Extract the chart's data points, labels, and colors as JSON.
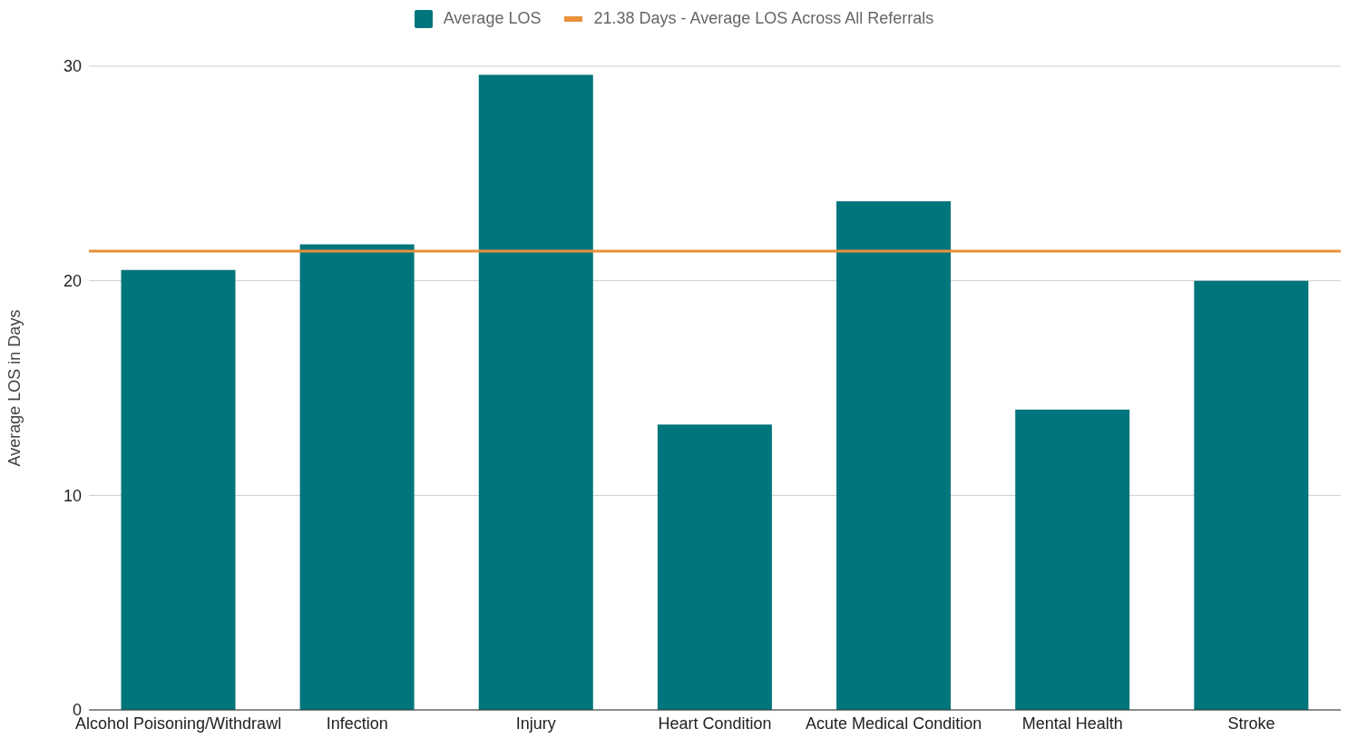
{
  "chart_data": {
    "type": "bar",
    "ylabel": "Average LOS in Days",
    "categories": [
      "Alcohol Poisoning/Withdrawl",
      "Infection",
      "Injury",
      "Heart Condition",
      "Acute Medical Condition",
      "Mental Health",
      "Stroke"
    ],
    "series": [
      {
        "name": "Average LOS",
        "color": "#00757c",
        "values": [
          20.5,
          21.7,
          29.6,
          13.3,
          23.7,
          14.0,
          20.0
        ]
      }
    ],
    "ylim": [
      0,
      30
    ],
    "yticks": [
      0,
      10,
      20,
      30
    ],
    "grid": "y",
    "legend": "top",
    "ref_lines": [
      {
        "axis": "y",
        "value": 21.38,
        "label": "21.38 Days - Average LOS Across All Referrals",
        "color": "#e8913a"
      }
    ]
  }
}
